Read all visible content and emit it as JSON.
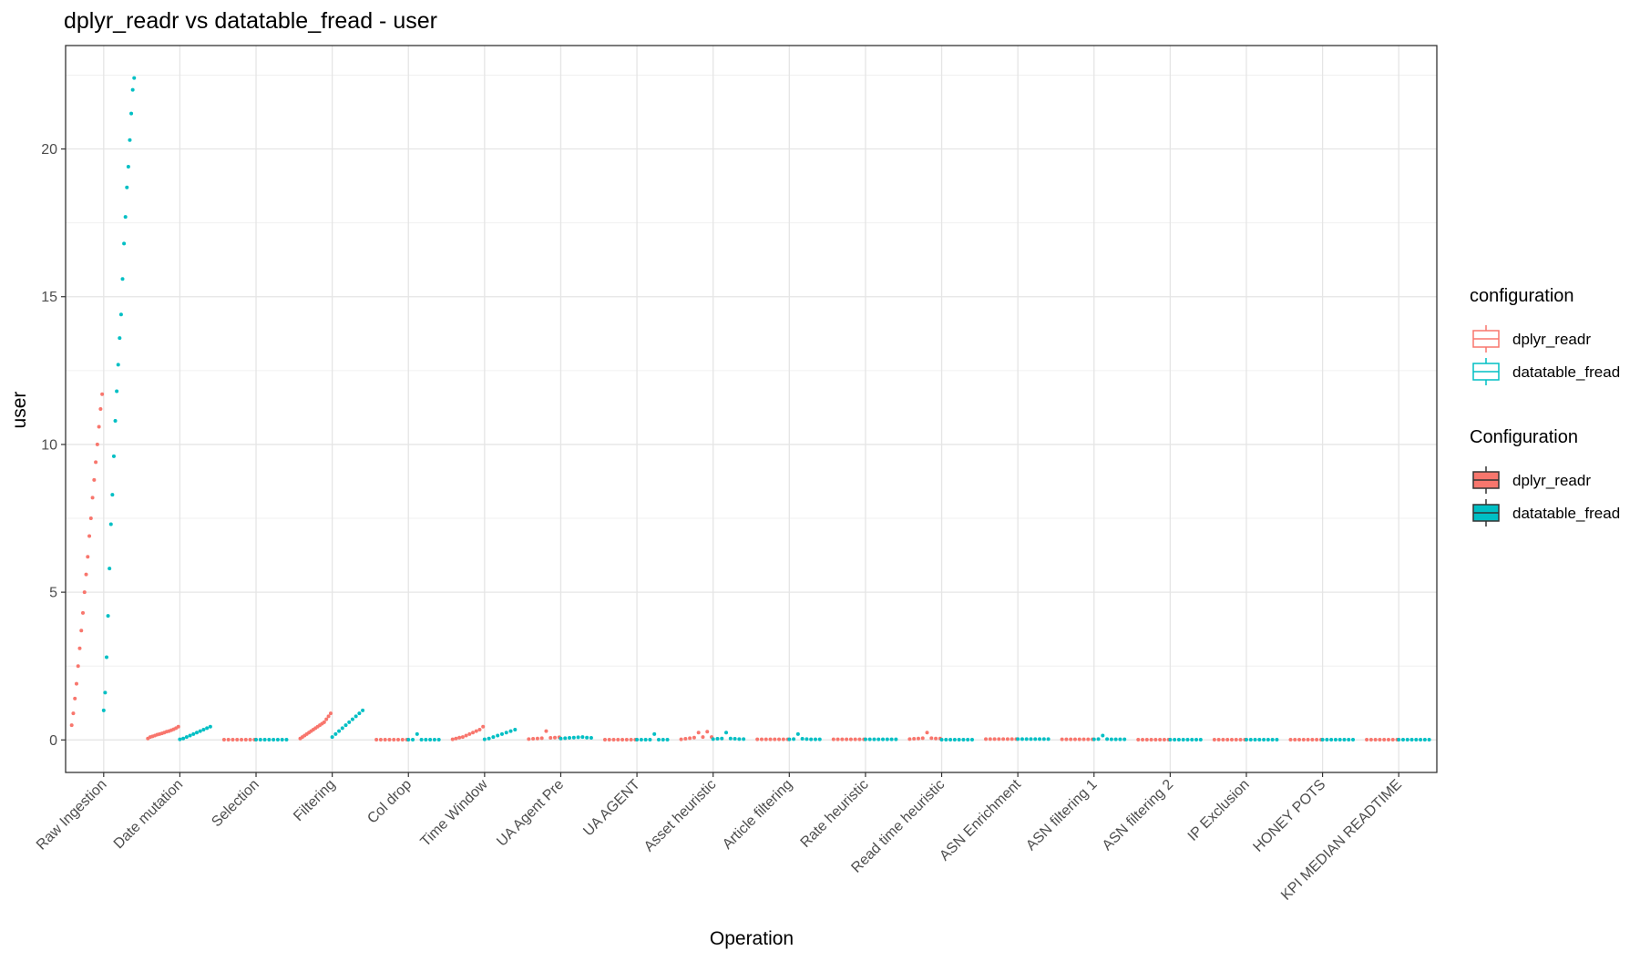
{
  "chart_data": {
    "type": "strip",
    "title": "dplyr_readr vs datatable_fread - user",
    "x_label": "Operation",
    "y_label": "user",
    "categories": [
      "Raw Ingestion",
      "Date mutation",
      "Selection",
      "Filtering",
      "Col drop",
      "Time Window",
      "UA Agent Pre",
      "UA AGENT",
      "Asset heuristic",
      "Article filtering",
      "Rate heuristic",
      "Read time heuristic",
      "ASN Enrichment",
      "ASN filtering 1",
      "ASN filtering 2",
      "IP Exclusion",
      "HONEY POTS",
      "KPI MEDIAN READTIME"
    ],
    "ylim": [
      -1.1,
      23.5
    ],
    "yticks": [
      0,
      5,
      10,
      15,
      20
    ],
    "minor_yticks": [
      2.5,
      7.5,
      12.5,
      17.5,
      22.5
    ],
    "grid": true,
    "legend_position": "right",
    "series": [
      {
        "name": "dplyr_readr",
        "color": "#f8766d",
        "values": [
          [
            0.5,
            0.9,
            1.4,
            1.9,
            2.5,
            3.1,
            3.7,
            4.3,
            5.0,
            5.6,
            6.2,
            6.9,
            7.5,
            8.2,
            8.8,
            9.4,
            10.0,
            10.6,
            11.2,
            11.7
          ],
          [
            0.05,
            0.1,
            0.12,
            0.15,
            0.18,
            0.2,
            0.22,
            0.25,
            0.28,
            0.3,
            0.33,
            0.36,
            0.4,
            0.45
          ],
          [
            0.01,
            0.01,
            0.01,
            0.01,
            0.01,
            0.01,
            0.01,
            0.01
          ],
          [
            0.05,
            0.1,
            0.15,
            0.2,
            0.25,
            0.3,
            0.35,
            0.4,
            0.45,
            0.5,
            0.55,
            0.6,
            0.7,
            0.8,
            0.9
          ],
          [
            0.01,
            0.01,
            0.01,
            0.01,
            0.01,
            0.01,
            0.01,
            0.01
          ],
          [
            0.02,
            0.05,
            0.08,
            0.1,
            0.15,
            0.2,
            0.25,
            0.3,
            0.35,
            0.45
          ],
          [
            0.03,
            0.04,
            0.05,
            0.06,
            0.3,
            0.07,
            0.08,
            0.09
          ],
          [
            0.01,
            0.01,
            0.01,
            0.01,
            0.01,
            0.01,
            0.01,
            0.01
          ],
          [
            0.02,
            0.04,
            0.06,
            0.08,
            0.25,
            0.1,
            0.28,
            0.1
          ],
          [
            0.02,
            0.02,
            0.02,
            0.02,
            0.02,
            0.02,
            0.02,
            0.02
          ],
          [
            0.02,
            0.02,
            0.02,
            0.02,
            0.02,
            0.02,
            0.02,
            0.02
          ],
          [
            0.03,
            0.04,
            0.05,
            0.06,
            0.25,
            0.06,
            0.05,
            0.05
          ],
          [
            0.03,
            0.03,
            0.03,
            0.03,
            0.03,
            0.03,
            0.03,
            0.03
          ],
          [
            0.02,
            0.02,
            0.02,
            0.02,
            0.02,
            0.02,
            0.02,
            0.02
          ],
          [
            0.01,
            0.01,
            0.01,
            0.01,
            0.01,
            0.01,
            0.01,
            0.01
          ],
          [
            0.01,
            0.01,
            0.01,
            0.01,
            0.01,
            0.01,
            0.01,
            0.01
          ],
          [
            0.01,
            0.01,
            0.01,
            0.01,
            0.01,
            0.01,
            0.01,
            0.01
          ],
          [
            0.01,
            0.01,
            0.01,
            0.01,
            0.01,
            0.01,
            0.01,
            0.01
          ]
        ]
      },
      {
        "name": "datatable_fread",
        "color": "#00bfc4",
        "values": [
          [
            1.0,
            1.6,
            2.8,
            4.2,
            5.8,
            7.3,
            8.3,
            9.6,
            10.8,
            11.8,
            12.7,
            13.6,
            14.4,
            15.6,
            16.8,
            17.7,
            18.7,
            19.4,
            20.3,
            21.2,
            22.0,
            22.4
          ],
          [
            0.02,
            0.05,
            0.1,
            0.15,
            0.2,
            0.25,
            0.3,
            0.35,
            0.4,
            0.45
          ],
          [
            0.01,
            0.01,
            0.01,
            0.01,
            0.01,
            0.01,
            0.01,
            0.01
          ],
          [
            0.1,
            0.2,
            0.3,
            0.4,
            0.5,
            0.6,
            0.7,
            0.8,
            0.9,
            1.0
          ],
          [
            0.01,
            0.01,
            0.2,
            0.01,
            0.01,
            0.01,
            0.01,
            0.01
          ],
          [
            0.02,
            0.05,
            0.1,
            0.15,
            0.2,
            0.25,
            0.3,
            0.35
          ],
          [
            0.05,
            0.06,
            0.07,
            0.08,
            0.09,
            0.1,
            0.08,
            0.07
          ],
          [
            0.01,
            0.01,
            0.01,
            0.01,
            0.2,
            0.01,
            0.01,
            0.01
          ],
          [
            0.03,
            0.04,
            0.05,
            0.25,
            0.05,
            0.04,
            0.03,
            0.03
          ],
          [
            0.02,
            0.03,
            0.2,
            0.04,
            0.03,
            0.02,
            0.02,
            0.02
          ],
          [
            0.02,
            0.02,
            0.02,
            0.02,
            0.02,
            0.02,
            0.02,
            0.02
          ],
          [
            0.01,
            0.01,
            0.01,
            0.01,
            0.01,
            0.01,
            0.01,
            0.01
          ],
          [
            0.03,
            0.03,
            0.03,
            0.03,
            0.03,
            0.03,
            0.03,
            0.03
          ],
          [
            0.02,
            0.03,
            0.15,
            0.03,
            0.02,
            0.02,
            0.02,
            0.02
          ],
          [
            0.01,
            0.01,
            0.01,
            0.01,
            0.01,
            0.01,
            0.01,
            0.01
          ],
          [
            0.01,
            0.01,
            0.01,
            0.01,
            0.01,
            0.01,
            0.01,
            0.01
          ],
          [
            0.01,
            0.01,
            0.01,
            0.01,
            0.01,
            0.01,
            0.01,
            0.01
          ],
          [
            0.01,
            0.01,
            0.01,
            0.01,
            0.01,
            0.01,
            0.01,
            0.01
          ]
        ]
      }
    ],
    "legends": [
      {
        "title": "configuration",
        "style": "outline",
        "entries": [
          "dplyr_readr",
          "datatable_fread"
        ]
      },
      {
        "title": "Configuration",
        "style": "filled",
        "entries": [
          "dplyr_readr",
          "datatable_fread"
        ]
      }
    ]
  }
}
